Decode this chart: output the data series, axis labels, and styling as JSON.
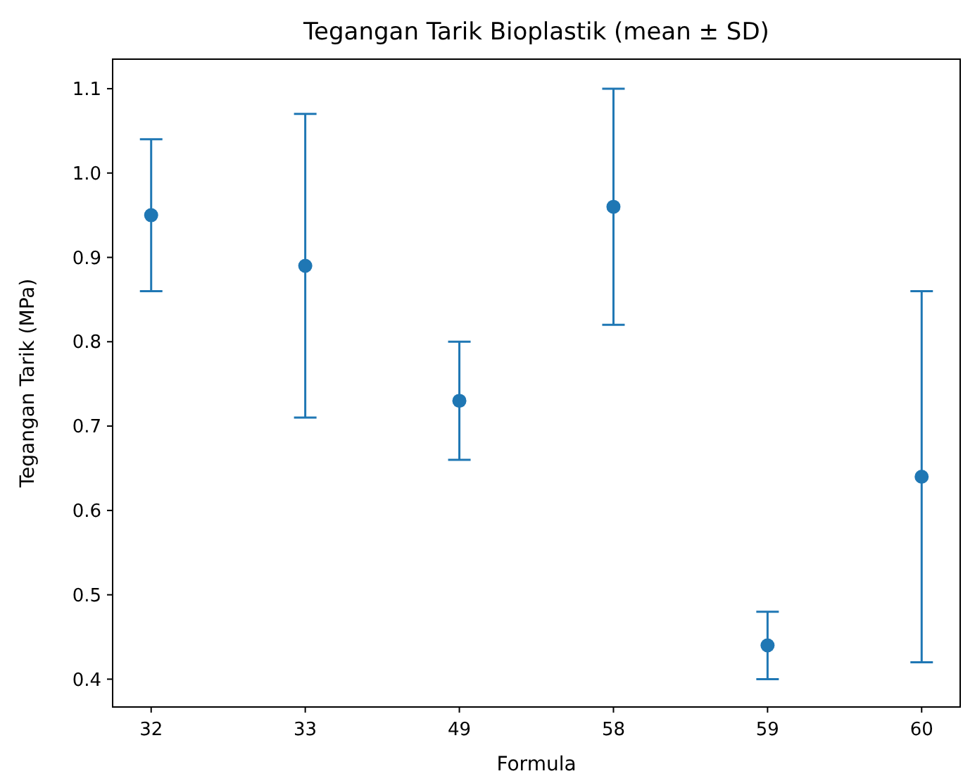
{
  "chart_data": {
    "type": "scatter",
    "title": "Tegangan Tarik Bioplastik (mean ± SD)",
    "xlabel": "Formula",
    "ylabel": "Tegangan Tarik (MPa)",
    "categories": [
      "32",
      "33",
      "49",
      "58",
      "59",
      "60"
    ],
    "series": [
      {
        "color": "#1f77b4",
        "values": [
          0.95,
          0.89,
          0.73,
          0.96,
          0.44,
          0.64
        ],
        "errors": [
          0.09,
          0.18,
          0.07,
          0.14,
          0.04,
          0.22
        ]
      }
    ],
    "ylim": [
      0.367,
      1.135
    ],
    "yticks": [
      0.4,
      0.5,
      0.6,
      0.7,
      0.8,
      0.9,
      {
        "value": 1.0,
        "label": "1.0"
      },
      1.1
    ],
    "marker": "circle"
  }
}
